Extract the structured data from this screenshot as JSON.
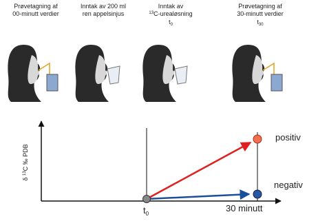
{
  "steps": [
    {
      "lines": [
        {
          "text": "Prøvetagning af"
        },
        {
          "text": "00-minutt verdier"
        }
      ]
    },
    {
      "lines": [
        {
          "text": "Inntak av 200 ml"
        },
        {
          "text": "ren appelsinjus"
        }
      ]
    },
    {
      "lines": [
        {
          "text": "Inntak av"
        },
        {
          "sup": "13",
          "text": "C-urealøsning"
        },
        {
          "text": "t",
          "sub": "0"
        }
      ]
    },
    {
      "lines": [
        {
          "text": "Prøvetagning af"
        },
        {
          "text": "30-minutt verdier"
        },
        {
          "text": "t",
          "sub": "30"
        }
      ]
    }
  ],
  "graph": {
    "y_axis_label": {
      "pre": "δ ",
      "sup": "13",
      "text": "C ‰ PDB"
    },
    "positive_label": "positiv",
    "negative_label": "negativ",
    "start_label": {
      "text": "t",
      "sub": "0"
    },
    "end_label": "30 minutt"
  }
}
